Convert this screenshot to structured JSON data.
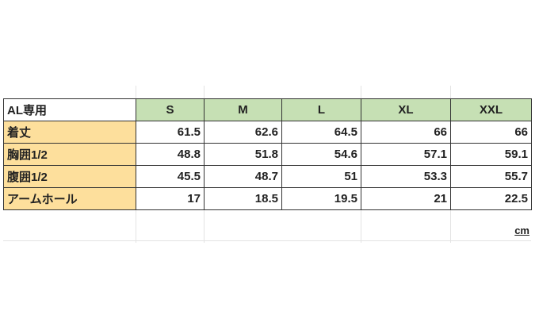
{
  "table": {
    "corner": "AL専用",
    "sizes": [
      "S",
      "M",
      "L",
      "XL",
      "XXL"
    ],
    "rows": [
      {
        "label": "着丈",
        "values": [
          "61.5",
          "62.6",
          "64.5",
          "66",
          "66"
        ]
      },
      {
        "label": "胸囲1/2",
        "values": [
          "48.8",
          "51.8",
          "54.6",
          "57.1",
          "59.1"
        ]
      },
      {
        "label": "腹囲1/2",
        "values": [
          "45.5",
          "48.7",
          "51",
          "53.3",
          "55.7"
        ]
      },
      {
        "label": "アームホール",
        "values": [
          "17",
          "18.5",
          "19.5",
          "21",
          "22.5"
        ]
      }
    ],
    "unit": "cm"
  },
  "colors": {
    "header_bg": "#c6e0b4",
    "label_bg": "#fddf9c"
  }
}
